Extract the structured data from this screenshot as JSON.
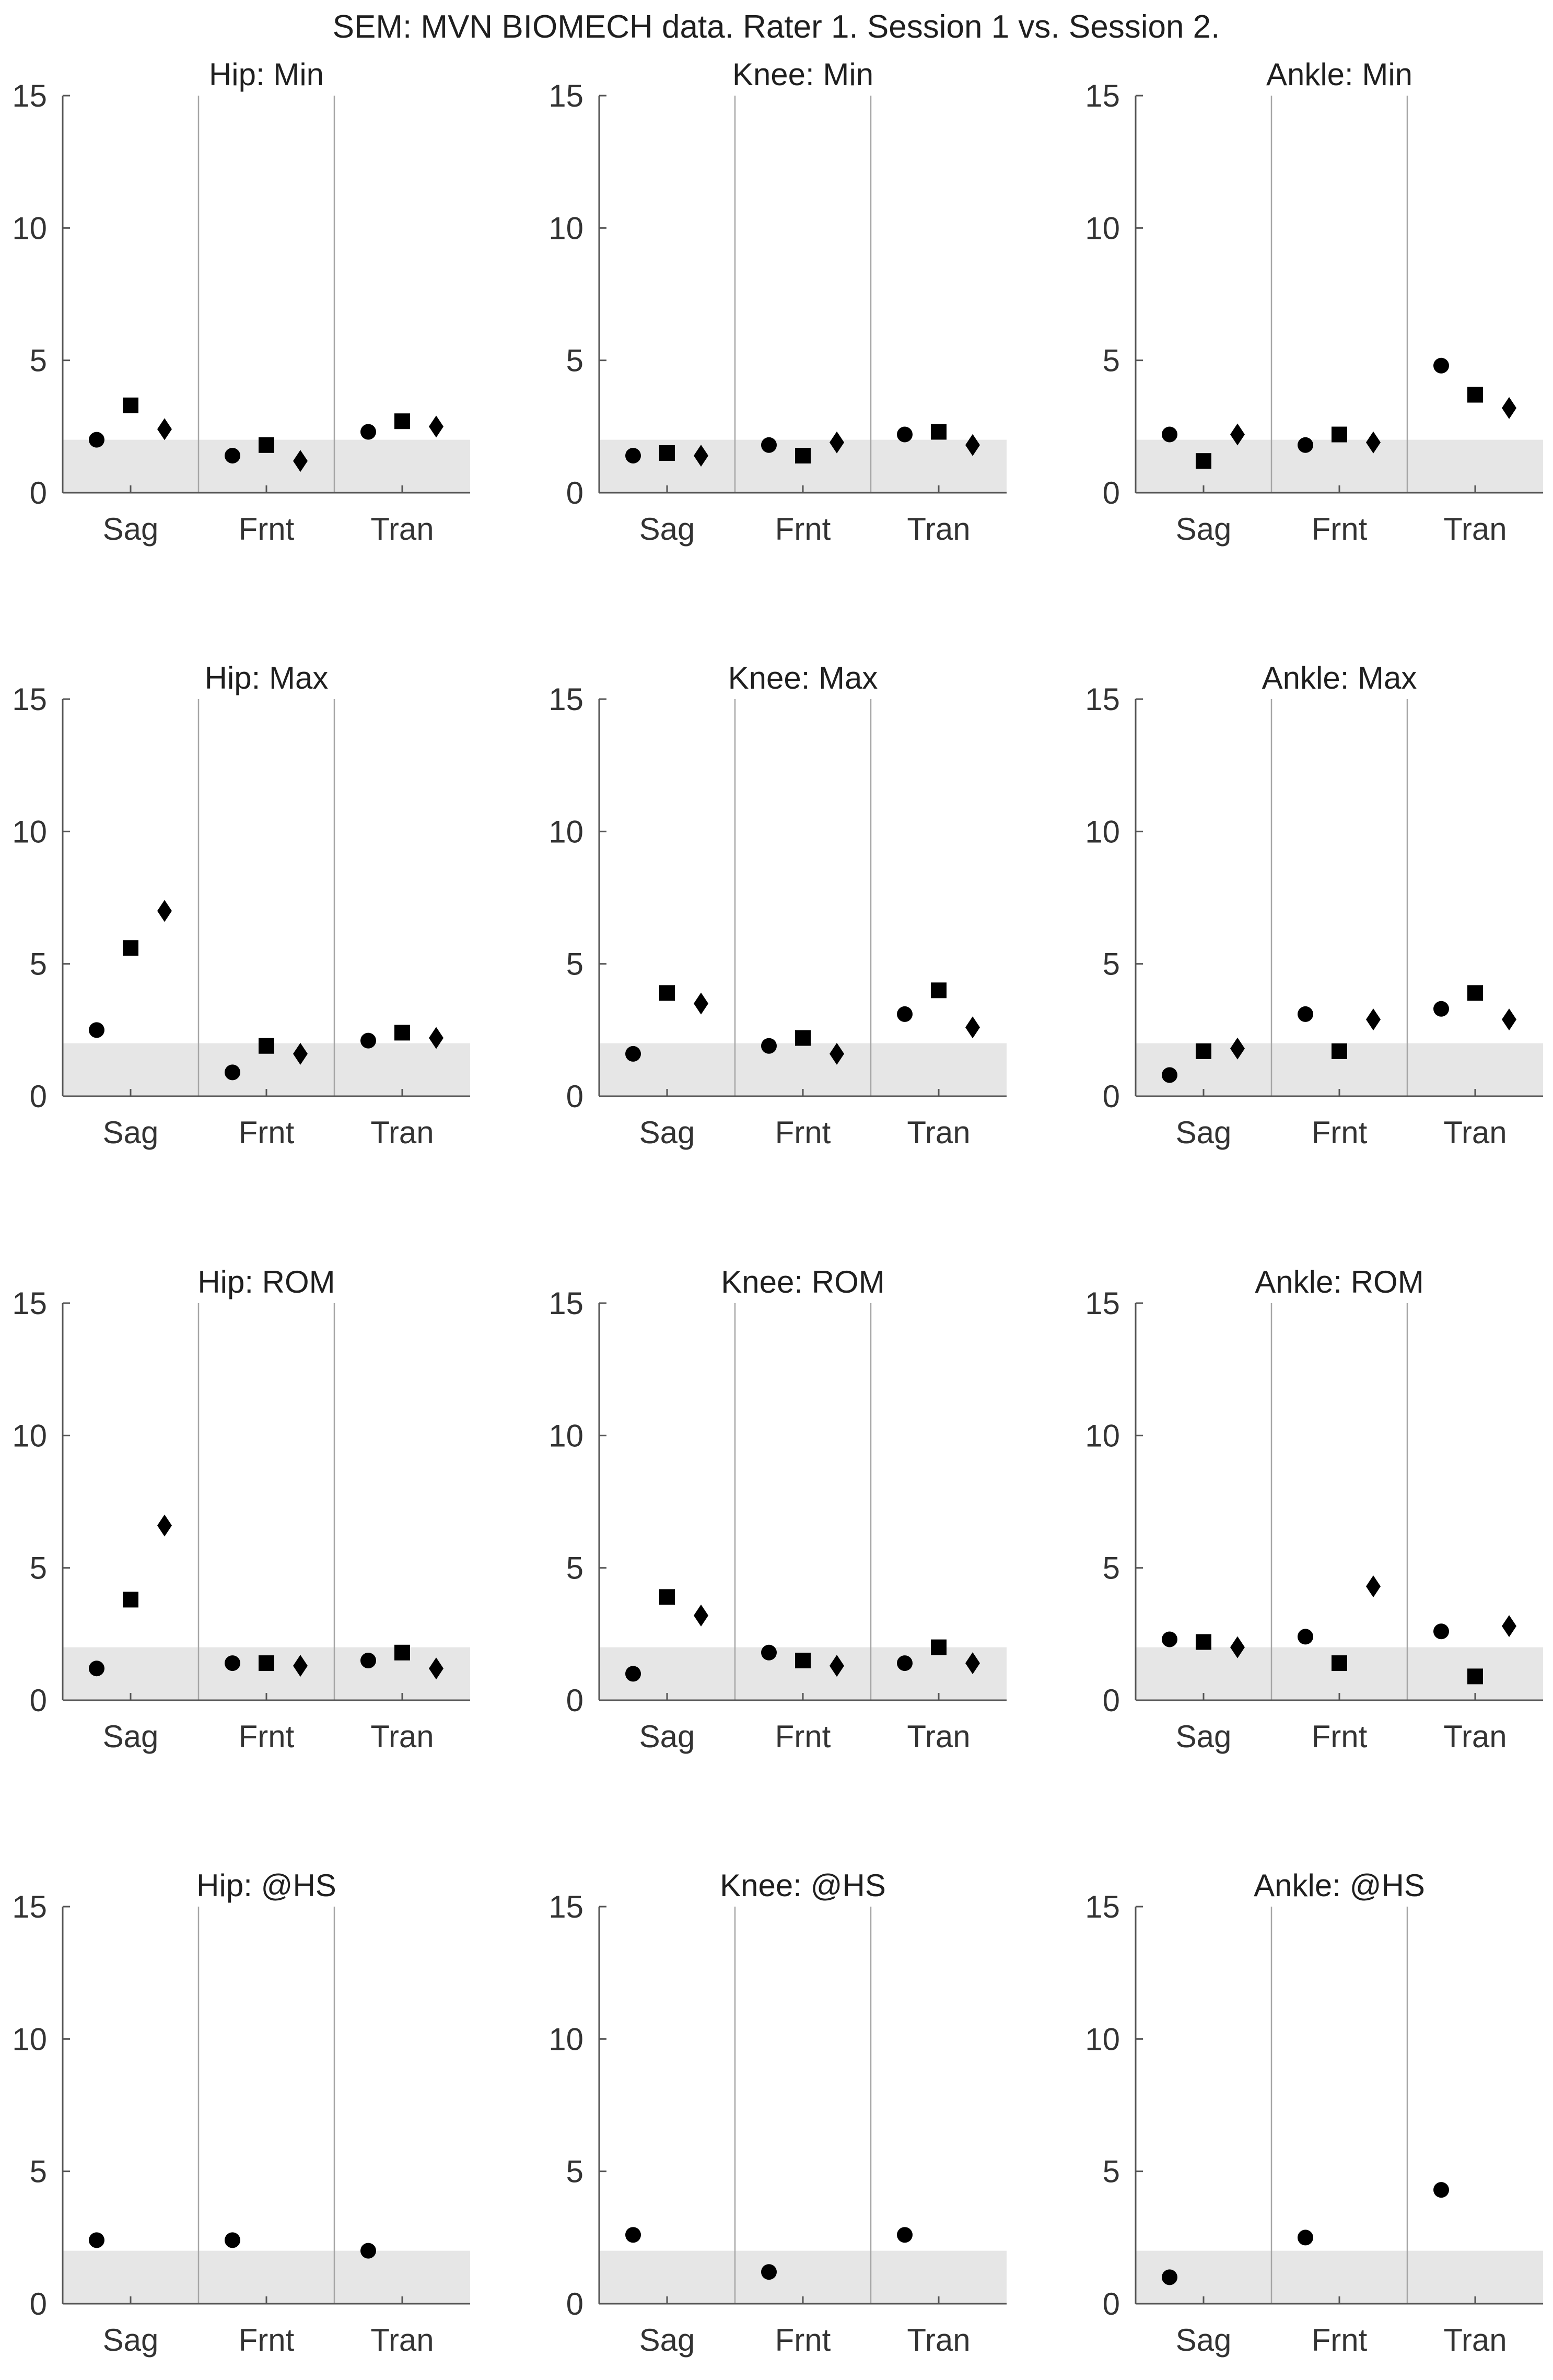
{
  "chart_data": {
    "title": "SEM: MVN BIOMECH data. Rater 1. Session 1 vs. Session 2.",
    "type": "scatter",
    "categories": [
      "Sag",
      "Frnt",
      "Tran"
    ],
    "ylim": [
      0,
      15
    ],
    "yticks": [
      0,
      5,
      10,
      15
    ],
    "reference_band": [
      0,
      2
    ],
    "band_color": "#e6e6e6",
    "marker_color": "#000000",
    "divider_color": "#a6a6a6",
    "axis_color": "#555555",
    "panels": [
      {
        "title": "Hip: Min",
        "series": [
          {
            "marker": "circle",
            "values": [
              2.0,
              1.4,
              2.3
            ]
          },
          {
            "marker": "square",
            "values": [
              3.3,
              1.8,
              2.7
            ]
          },
          {
            "marker": "diamond",
            "values": [
              2.4,
              1.2,
              2.5
            ]
          }
        ]
      },
      {
        "title": "Knee: Min",
        "series": [
          {
            "marker": "circle",
            "values": [
              1.4,
              1.8,
              2.2
            ]
          },
          {
            "marker": "square",
            "values": [
              1.5,
              1.4,
              2.3
            ]
          },
          {
            "marker": "diamond",
            "values": [
              1.4,
              1.9,
              1.8
            ]
          }
        ]
      },
      {
        "title": "Ankle: Min",
        "series": [
          {
            "marker": "circle",
            "values": [
              2.2,
              1.8,
              4.8
            ]
          },
          {
            "marker": "square",
            "values": [
              1.2,
              2.2,
              3.7
            ]
          },
          {
            "marker": "diamond",
            "values": [
              2.2,
              1.9,
              3.2
            ]
          }
        ]
      },
      {
        "title": "Hip: Max",
        "series": [
          {
            "marker": "circle",
            "values": [
              2.5,
              0.9,
              2.1
            ]
          },
          {
            "marker": "square",
            "values": [
              5.6,
              1.9,
              2.4
            ]
          },
          {
            "marker": "diamond",
            "values": [
              7.0,
              1.6,
              2.2
            ]
          }
        ]
      },
      {
        "title": "Knee: Max",
        "series": [
          {
            "marker": "circle",
            "values": [
              1.6,
              1.9,
              3.1
            ]
          },
          {
            "marker": "square",
            "values": [
              3.9,
              2.2,
              4.0
            ]
          },
          {
            "marker": "diamond",
            "values": [
              3.5,
              1.6,
              2.6
            ]
          }
        ]
      },
      {
        "title": "Ankle: Max",
        "series": [
          {
            "marker": "circle",
            "values": [
              0.8,
              3.1,
              3.3
            ]
          },
          {
            "marker": "square",
            "values": [
              1.7,
              1.7,
              3.9
            ]
          },
          {
            "marker": "diamond",
            "values": [
              1.8,
              2.9,
              2.9
            ]
          }
        ]
      },
      {
        "title": "Hip: ROM",
        "series": [
          {
            "marker": "circle",
            "values": [
              1.2,
              1.4,
              1.5
            ]
          },
          {
            "marker": "square",
            "values": [
              3.8,
              1.4,
              1.8
            ]
          },
          {
            "marker": "diamond",
            "values": [
              6.6,
              1.3,
              1.2
            ]
          }
        ]
      },
      {
        "title": "Knee: ROM",
        "series": [
          {
            "marker": "circle",
            "values": [
              1.0,
              1.8,
              1.4
            ]
          },
          {
            "marker": "square",
            "values": [
              3.9,
              1.5,
              2.0
            ]
          },
          {
            "marker": "diamond",
            "values": [
              3.2,
              1.3,
              1.4
            ]
          }
        ]
      },
      {
        "title": "Ankle: ROM",
        "series": [
          {
            "marker": "circle",
            "values": [
              2.3,
              2.4,
              2.6
            ]
          },
          {
            "marker": "square",
            "values": [
              2.2,
              1.4,
              0.9
            ]
          },
          {
            "marker": "diamond",
            "values": [
              2.0,
              4.3,
              2.8
            ]
          }
        ]
      },
      {
        "title": "Hip: @HS",
        "series": [
          {
            "marker": "circle",
            "values": [
              2.4,
              2.4,
              2.0
            ]
          }
        ]
      },
      {
        "title": "Knee: @HS",
        "series": [
          {
            "marker": "circle",
            "values": [
              2.6,
              1.2,
              2.6
            ]
          }
        ]
      },
      {
        "title": "Ankle: @HS",
        "series": [
          {
            "marker": "circle",
            "values": [
              1.0,
              2.5,
              4.3
            ]
          }
        ]
      }
    ]
  }
}
